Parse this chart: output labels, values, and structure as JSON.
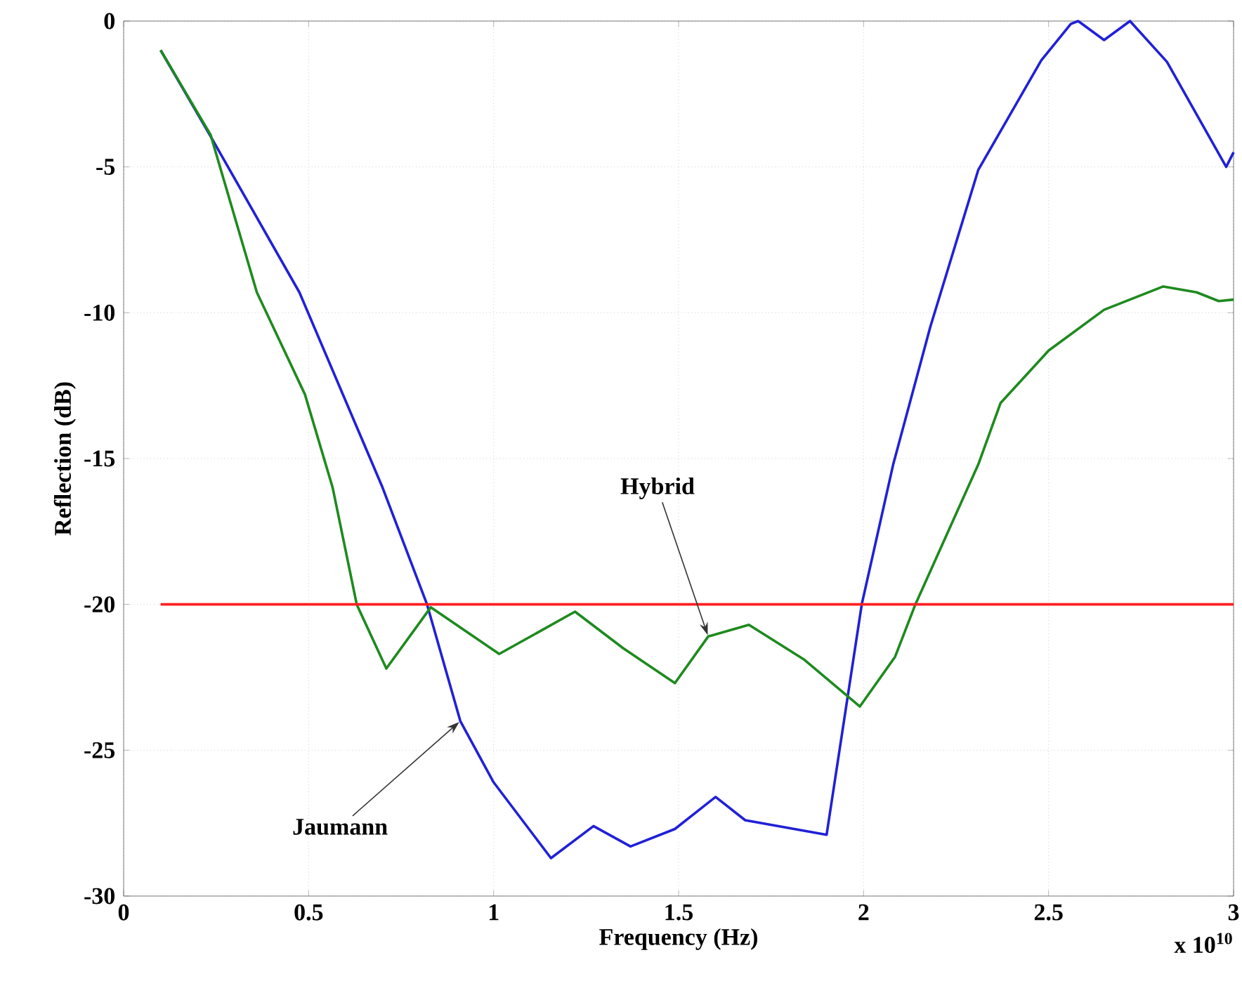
{
  "chart_data": {
    "type": "line",
    "xlabel": "Frequency (Hz)",
    "ylabel": "Reflection (dB)",
    "xlim": [
      0,
      3
    ],
    "ylim": [
      -30,
      0
    ],
    "xticks": [
      0,
      0.5,
      1,
      1.5,
      2,
      2.5,
      3
    ],
    "yticks": [
      -30,
      -25,
      -20,
      -15,
      -10,
      -5,
      0
    ],
    "grid": true,
    "series": [
      {
        "color": "#2020d8",
        "x": [
          0.1,
          0.235,
          0.475,
          0.7,
          0.82,
          0.91,
          1.0,
          1.155,
          1.27,
          1.37,
          1.49,
          1.6,
          1.68,
          1.9,
          1.995,
          2.08,
          2.18,
          2.31,
          2.48,
          2.56,
          2.58,
          2.65,
          2.72,
          2.82,
          2.98,
          3.0
        ],
        "values": [
          -1,
          -3.95,
          -9.3,
          -16.0,
          -20.0,
          -24.0,
          -26.1,
          -28.7,
          -27.6,
          -28.3,
          -27.7,
          -26.6,
          -27.4,
          -27.9,
          -20.0,
          -15.2,
          -10.5,
          -5.1,
          -1.35,
          -0.1,
          0,
          -0.65,
          0,
          -1.4,
          -5.0,
          -4.5
        ]
      },
      {
        "color": "#1e8a1e",
        "x": [
          0.1,
          0.235,
          0.36,
          0.49,
          0.565,
          0.63,
          0.71,
          0.83,
          1.015,
          1.22,
          1.35,
          1.49,
          1.58,
          1.69,
          1.84,
          1.99,
          2.085,
          2.14,
          2.31,
          2.37,
          2.5,
          2.65,
          2.81,
          2.9,
          2.96,
          3.0
        ],
        "values": [
          -1,
          -3.9,
          -9.3,
          -12.8,
          -16.0,
          -20.0,
          -22.2,
          -20.1,
          -21.7,
          -20.25,
          -21.5,
          -22.7,
          -21.1,
          -20.7,
          -21.9,
          -23.5,
          -21.8,
          -20.0,
          -15.2,
          -13.1,
          -11.3,
          -9.9,
          -9.1,
          -9.3,
          -9.6,
          -9.55
        ]
      },
      {
        "color": "#ff2020",
        "x": [
          0.1,
          3.0
        ],
        "values": [
          -20,
          -20
        ]
      }
    ],
    "annotations": [
      {
        "text": "Hybrid",
        "x": 1.58,
        "y": -21.1
      },
      {
        "text": "Jaumann",
        "x": 0.91,
        "y": -24
      },
      "x 10$^{10}$"
    ]
  }
}
